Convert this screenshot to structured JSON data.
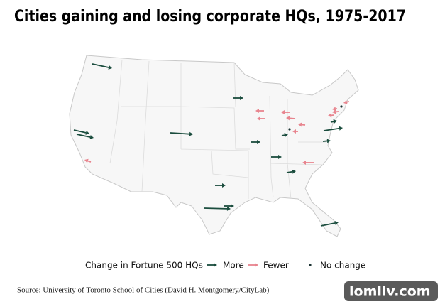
{
  "title": "Cities gaining and losing corporate HQs, 1975-2017",
  "legend": {
    "title": "Change in Fortune 500 HQs",
    "items": [
      {
        "label": "More",
        "color": "#1b4d3e"
      },
      {
        "label": "Fewer",
        "color": "#e8848e"
      },
      {
        "label": "No change",
        "color": "#1c3333"
      }
    ]
  },
  "source": "Source: University of Toronto School of Cities (David H. Montgomery/CityLab)",
  "watermark": "lomliv.com"
}
